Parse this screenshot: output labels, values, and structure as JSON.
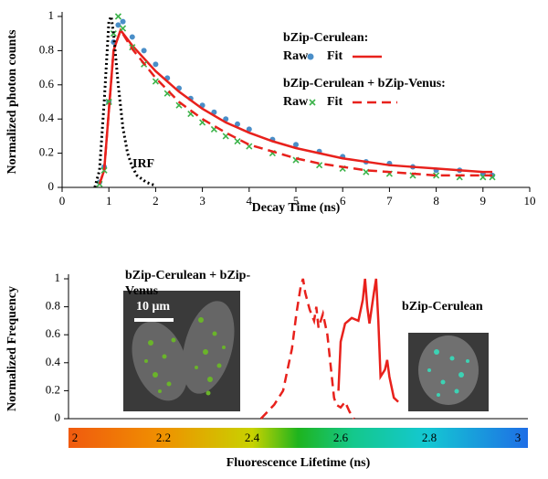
{
  "chart_data": [
    {
      "type": "scatter",
      "x_label": "Decay Time (ns)",
      "y_label": "Normalized photon counts",
      "xlim": [
        0,
        10
      ],
      "xticks": [
        0,
        1,
        2,
        3,
        4,
        5,
        6,
        7,
        8,
        9,
        10
      ],
      "ylim": [
        0,
        1
      ],
      "yticks": [
        0,
        0.2,
        0.4,
        0.6,
        0.8,
        1
      ],
      "series": [
        {
          "name": "Raw",
          "legend_title": "bZip-Cerulean:",
          "mode": "markers",
          "marker": "circle",
          "color": "#4a8ec8",
          "x": [
            0.8,
            0.9,
            1.0,
            1.1,
            1.2,
            1.3,
            1.5,
            1.75,
            2,
            2.25,
            2.5,
            2.75,
            3,
            3.25,
            3.5,
            3.75,
            4,
            4.5,
            5,
            5.5,
            6,
            6.5,
            7,
            7.5,
            8,
            8.5,
            9,
            9.2
          ],
          "values": [
            0.03,
            0.12,
            0.5,
            0.85,
            0.95,
            0.97,
            0.88,
            0.8,
            0.72,
            0.64,
            0.58,
            0.52,
            0.48,
            0.44,
            0.4,
            0.37,
            0.34,
            0.28,
            0.25,
            0.21,
            0.18,
            0.15,
            0.14,
            0.12,
            0.1,
            0.1,
            0.08,
            0.07
          ]
        },
        {
          "name": "Fit",
          "mode": "line",
          "dash": "solid",
          "color": "#e8211c",
          "x": [
            0.8,
            0.9,
            1.0,
            1.1,
            1.25,
            1.5,
            2,
            2.5,
            3,
            3.5,
            4,
            4.5,
            5,
            5.5,
            6,
            6.5,
            7,
            7.5,
            8,
            8.5,
            9,
            9.2
          ],
          "values": [
            0.02,
            0.1,
            0.45,
            0.8,
            0.92,
            0.83,
            0.68,
            0.56,
            0.46,
            0.38,
            0.32,
            0.27,
            0.23,
            0.2,
            0.17,
            0.15,
            0.13,
            0.12,
            0.11,
            0.1,
            0.09,
            0.09
          ]
        },
        {
          "name": "Raw",
          "legend_title": "bZip-Cerulean + bZip-Venus:",
          "mode": "markers",
          "marker": "x",
          "color": "#3cb34a",
          "x": [
            0.8,
            0.9,
            1.0,
            1.1,
            1.2,
            1.3,
            1.5,
            1.75,
            2,
            2.25,
            2.5,
            2.75,
            3,
            3.25,
            3.5,
            3.75,
            4,
            4.5,
            5,
            5.5,
            6,
            6.5,
            7,
            7.5,
            8,
            8.5,
            9,
            9.2
          ],
          "values": [
            0.02,
            0.1,
            0.5,
            0.9,
            1.0,
            0.93,
            0.82,
            0.72,
            0.62,
            0.55,
            0.48,
            0.43,
            0.38,
            0.34,
            0.3,
            0.27,
            0.24,
            0.2,
            0.16,
            0.13,
            0.11,
            0.09,
            0.08,
            0.07,
            0.07,
            0.06,
            0.06,
            0.06
          ]
        },
        {
          "name": "Fit",
          "mode": "line",
          "dash": "dashed",
          "color": "#e8211c",
          "x": [
            0.8,
            0.9,
            1.0,
            1.1,
            1.25,
            1.5,
            2,
            2.5,
            3,
            3.5,
            4,
            4.5,
            5,
            5.5,
            6,
            6.5,
            7,
            7.5,
            8,
            8.5,
            9,
            9.2
          ],
          "values": [
            0.02,
            0.1,
            0.45,
            0.8,
            0.92,
            0.81,
            0.64,
            0.5,
            0.4,
            0.32,
            0.25,
            0.21,
            0.17,
            0.14,
            0.12,
            0.1,
            0.09,
            0.08,
            0.07,
            0.07,
            0.07,
            0.07
          ]
        },
        {
          "name": "IRF",
          "legend": false,
          "mode": "line",
          "dash": "dotted",
          "color": "#000000",
          "x": [
            0.7,
            0.8,
            0.9,
            1.0,
            1.05,
            1.1,
            1.2,
            1.3,
            1.4,
            1.5,
            1.6,
            1.8,
            2.0
          ],
          "values": [
            0,
            0.1,
            0.5,
            0.97,
            1.0,
            0.9,
            0.6,
            0.35,
            0.2,
            0.12,
            0.07,
            0.03,
            0.01
          ]
        }
      ]
    },
    {
      "type": "line",
      "x_label": "Fluorescence Lifetime (ns)",
      "y_label": "Normalized Frequency",
      "xlim": [
        2,
        3
      ],
      "xticks": [
        2,
        2.2,
        2.4,
        2.6,
        2.8,
        3
      ],
      "colorbar": true,
      "ylim": [
        0,
        1
      ],
      "yticks": [
        0,
        0.2,
        0.4,
        0.6,
        0.8,
        1
      ],
      "scale_bar": "10 μm",
      "series": [
        {
          "name": "bZip-Cerulean + bZip-Venus",
          "dash": "dashed",
          "color": "#e8211c",
          "x": [
            2.42,
            2.45,
            2.47,
            2.48,
            2.49,
            2.5,
            2.51,
            2.515,
            2.52,
            2.53,
            2.54,
            2.545,
            2.55,
            2.56,
            2.57,
            2.575,
            2.58,
            2.585,
            2.59,
            2.6,
            2.61,
            2.62,
            2.63
          ],
          "values": [
            0,
            0.1,
            0.2,
            0.35,
            0.5,
            0.75,
            0.95,
            1.0,
            0.9,
            0.78,
            0.7,
            0.8,
            0.65,
            0.75,
            0.6,
            0.45,
            0.3,
            0.15,
            0.1,
            0.08,
            0.12,
            0.05,
            0
          ]
        },
        {
          "name": "bZip-Cerulean",
          "dash": "solid",
          "color": "#e8211c",
          "x": [
            2.595,
            2.6,
            2.61,
            2.625,
            2.64,
            2.65,
            2.655,
            2.66,
            2.665,
            2.675,
            2.68,
            2.685,
            2.69,
            2.7,
            2.705,
            2.71,
            2.72,
            2.73
          ],
          "values": [
            0.2,
            0.55,
            0.68,
            0.72,
            0.7,
            0.85,
            1.0,
            0.8,
            0.68,
            0.9,
            1.0,
            0.7,
            0.3,
            0.35,
            0.42,
            0.3,
            0.15,
            0.12
          ]
        }
      ]
    }
  ]
}
